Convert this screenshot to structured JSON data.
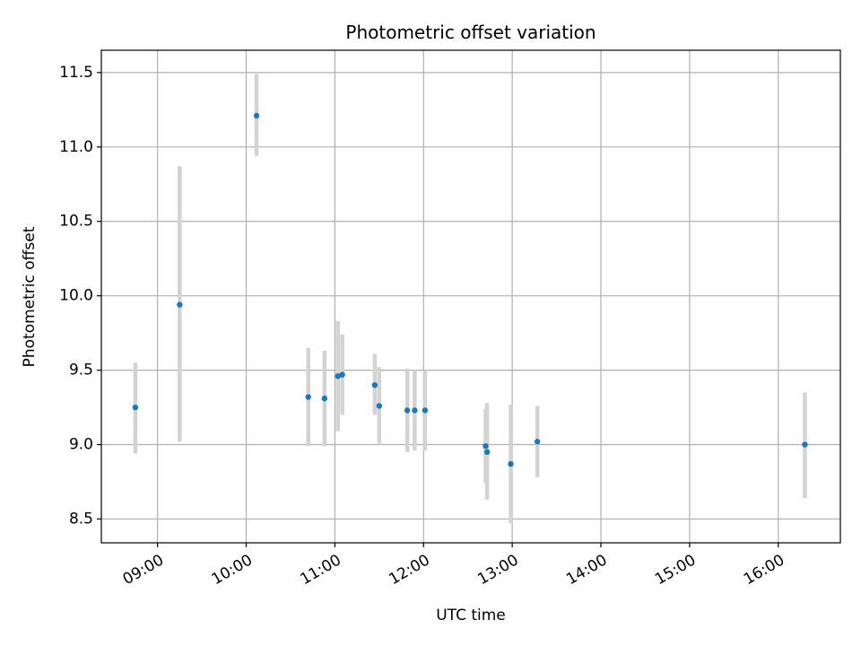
{
  "chart_data": {
    "type": "scatter",
    "title": "Photometric offset variation",
    "xlabel": "UTC time",
    "ylabel": "Photometric offset",
    "x_axis_kind": "time",
    "xlim": [
      "08:22",
      "16:42"
    ],
    "ylim": [
      8.34,
      11.65
    ],
    "grid": true,
    "x_ticks": [
      "09:00",
      "10:00",
      "11:00",
      "12:00",
      "13:00",
      "14:00",
      "15:00",
      "16:00"
    ],
    "y_ticks": [
      "8.5",
      "9.0",
      "9.5",
      "10.0",
      "10.5",
      "11.0",
      "11.5"
    ],
    "colors": {
      "point": "#1f77b4",
      "errorbar": "#d3d3d3",
      "grid": "#b0b0b0"
    },
    "points": [
      {
        "x": "08:45",
        "y": 9.25,
        "ylow": 8.94,
        "yhigh": 9.55
      },
      {
        "x": "09:15",
        "y": 9.94,
        "ylow": 9.02,
        "yhigh": 10.87
      },
      {
        "x": "10:07",
        "y": 11.21,
        "ylow": 10.94,
        "yhigh": 11.49
      },
      {
        "x": "10:42",
        "y": 9.32,
        "ylow": 8.99,
        "yhigh": 9.65
      },
      {
        "x": "10:53",
        "y": 9.31,
        "ylow": 8.99,
        "yhigh": 9.63
      },
      {
        "x": "11:02",
        "y": 9.46,
        "ylow": 9.09,
        "yhigh": 9.83
      },
      {
        "x": "11:05",
        "y": 9.47,
        "ylow": 9.2,
        "yhigh": 9.74
      },
      {
        "x": "11:27",
        "y": 9.4,
        "ylow": 9.2,
        "yhigh": 9.61
      },
      {
        "x": "11:30",
        "y": 9.26,
        "ylow": 9.0,
        "yhigh": 9.52
      },
      {
        "x": "11:49",
        "y": 9.23,
        "ylow": 8.95,
        "yhigh": 9.51
      },
      {
        "x": "11:54",
        "y": 9.23,
        "ylow": 8.96,
        "yhigh": 9.5
      },
      {
        "x": "12:01",
        "y": 9.23,
        "ylow": 8.96,
        "yhigh": 9.5
      },
      {
        "x": "12:42",
        "y": 8.99,
        "ylow": 8.74,
        "yhigh": 9.24
      },
      {
        "x": "12:43",
        "y": 8.95,
        "ylow": 8.63,
        "yhigh": 9.28
      },
      {
        "x": "12:59",
        "y": 8.87,
        "ylow": 8.47,
        "yhigh": 9.27
      },
      {
        "x": "13:17",
        "y": 9.02,
        "ylow": 8.78,
        "yhigh": 9.26
      },
      {
        "x": "16:18",
        "y": 9.0,
        "ylow": 8.64,
        "yhigh": 9.35
      }
    ]
  }
}
